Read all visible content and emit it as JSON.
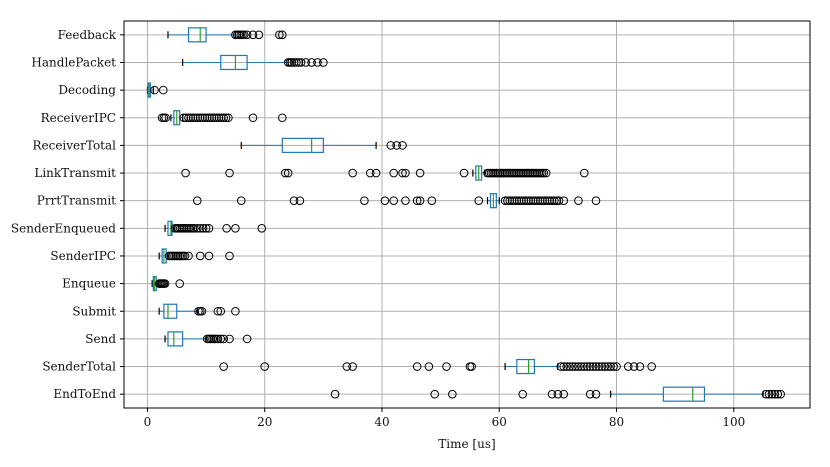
{
  "chart_data": {
    "type": "boxplot",
    "orientation": "horizontal",
    "title": "",
    "xlabel": "Time [us]",
    "ylabel": "",
    "xlim": [
      -4,
      113
    ],
    "xticks": [
      0,
      20,
      40,
      60,
      80,
      100
    ],
    "grid": true,
    "colors": {
      "box": "#1f77b4",
      "median": "#2ca02c",
      "flier": "#000000",
      "grid": "#b0b0b0"
    },
    "categories": [
      "Feedback",
      "HandlePacket",
      "Decoding",
      "ReceiverIPC",
      "ReceiverTotal",
      "LinkTransmit",
      "PrrtTransmit",
      "SenderEnqueued",
      "SenderIPC",
      "Enqueue",
      "Submit",
      "Send",
      "SenderTotal",
      "EndToEnd"
    ],
    "boxes": [
      {
        "label": "Feedback",
        "whislo": 3.5,
        "q1": 7,
        "med": 9,
        "q3": 10,
        "whishi": 15,
        "fliers": [
          15,
          15.3,
          15.6,
          15.9,
          16.2,
          16.5,
          17,
          18,
          19,
          22.5,
          23
        ]
      },
      {
        "label": "HandlePacket",
        "whislo": 6,
        "q1": 12.5,
        "med": 15,
        "q3": 17,
        "whishi": 24,
        "fliers": [
          24,
          24.3,
          24.6,
          25,
          25.4,
          25.8,
          26.2,
          27,
          28,
          29,
          30
        ]
      },
      {
        "label": "Decoding",
        "whislo": 0,
        "q1": 0.1,
        "med": 0.3,
        "q3": 0.5,
        "whishi": 1,
        "fliers": [
          1.2,
          2.7
        ]
      },
      {
        "label": "ReceiverIPC",
        "whislo": 4,
        "q1": 4.5,
        "med": 5,
        "q3": 5.5,
        "whishi": 6,
        "fliers": [
          2.5,
          2.8,
          3.1,
          6.2,
          6.6,
          7,
          7.4,
          7.8,
          8.2,
          8.6,
          9,
          9.4,
          9.8,
          10.2,
          10.6,
          11,
          11.4,
          11.8,
          12.2,
          12.6,
          13,
          13.4,
          13.8,
          18,
          23
        ]
      },
      {
        "label": "ReceiverTotal",
        "whislo": 16,
        "q1": 23,
        "med": 28,
        "q3": 30,
        "whishi": 39,
        "fliers": [
          41.5,
          42.5,
          43.5
        ]
      },
      {
        "label": "LinkTransmit",
        "whislo": 55.5,
        "q1": 56,
        "med": 56.5,
        "q3": 57,
        "whishi": 57.5,
        "fliers": [
          6.5,
          14,
          23.5,
          24,
          35,
          38,
          39,
          42,
          43.5,
          44,
          46.5,
          54,
          58,
          58.3,
          58.6,
          58.9,
          59.2,
          59.5,
          59.8,
          60.1,
          60.4,
          60.7,
          61,
          61.3,
          61.6,
          61.9,
          62.2,
          62.5,
          62.8,
          63.1,
          63.4,
          63.7,
          64,
          64.3,
          64.6,
          64.9,
          65.2,
          65.5,
          65.8,
          66.1,
          66.4,
          66.7,
          67,
          67.3,
          67.6,
          68,
          74.5
        ]
      },
      {
        "label": "PrrtTransmit",
        "whislo": 58,
        "q1": 58.5,
        "med": 59,
        "q3": 59.5,
        "whishi": 60,
        "fliers": [
          8.5,
          16,
          25,
          26,
          37,
          40.5,
          42,
          44,
          46,
          46.5,
          48.5,
          56.5,
          61,
          61.4,
          61.8,
          62.2,
          62.6,
          63,
          63.4,
          63.8,
          64.2,
          64.6,
          65,
          65.4,
          65.8,
          66.2,
          66.6,
          67,
          67.4,
          67.8,
          68.2,
          68.6,
          69,
          69.4,
          69.8,
          70.2,
          71,
          73.5,
          76.5
        ]
      },
      {
        "label": "SenderEnqueued",
        "whislo": 3,
        "q1": 3.5,
        "med": 4,
        "q3": 4.2,
        "whishi": 4.5,
        "fliers": [
          4.7,
          5,
          5.3,
          5.6,
          5.9,
          6.2,
          6.5,
          6.8,
          7.1,
          7.4,
          7.7,
          8,
          8.5,
          9,
          9.5,
          10,
          10.5,
          13.5,
          15,
          19.5
        ]
      },
      {
        "label": "SenderIPC",
        "whislo": 2,
        "q1": 2.5,
        "med": 2.8,
        "q3": 3.2,
        "whishi": 3.5,
        "fliers": [
          3.7,
          4,
          4.3,
          4.6,
          4.9,
          5.2,
          5.5,
          5.8,
          6.1,
          6.4,
          7,
          9,
          10.5,
          14
        ]
      },
      {
        "label": "Enqueue",
        "whislo": 0.8,
        "q1": 1,
        "med": 1.2,
        "q3": 1.5,
        "whishi": 1.8,
        "fliers": [
          2,
          2.2,
          2.4,
          2.6,
          2.8,
          3,
          5.5
        ]
      },
      {
        "label": "Submit",
        "whislo": 2,
        "q1": 2.8,
        "med": 3.5,
        "q3": 5,
        "whishi": 8.5,
        "fliers": [
          8.7,
          9,
          9.3,
          12,
          12.5,
          15
        ]
      },
      {
        "label": "Send",
        "whislo": 3,
        "q1": 3.5,
        "med": 4.5,
        "q3": 6,
        "whishi": 10,
        "fliers": [
          10.2,
          10.5,
          10.8,
          11.1,
          11.4,
          11.7,
          12,
          12.5,
          13,
          14,
          17
        ]
      },
      {
        "label": "SenderTotal",
        "whislo": 61,
        "q1": 63,
        "med": 65,
        "q3": 66,
        "whishi": 70,
        "fliers": [
          13,
          20,
          34,
          35,
          46,
          48,
          51,
          55,
          55.3,
          70.5,
          71,
          71.5,
          72,
          72.5,
          73,
          73.5,
          74,
          74.5,
          75,
          75.5,
          76,
          76.5,
          77,
          77.5,
          78,
          78.5,
          79,
          79.5,
          80,
          82,
          83,
          84,
          86
        ]
      },
      {
        "label": "EndToEnd",
        "whislo": 79,
        "q1": 88,
        "med": 93,
        "q3": 95,
        "whishi": 105,
        "fliers": [
          32,
          49,
          52,
          64,
          69,
          70,
          71,
          75.5,
          76.5,
          105.5,
          106,
          106.5,
          107,
          107.5,
          108
        ]
      }
    ]
  }
}
